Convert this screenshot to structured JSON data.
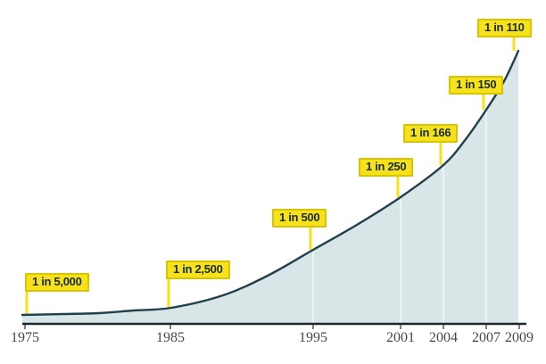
{
  "chart_data": {
    "type": "area",
    "title": "",
    "xlabel": "",
    "ylabel": "",
    "x_tick_labels": [
      "1975",
      "1985",
      "1995",
      "2001",
      "2004",
      "2007",
      "2009"
    ],
    "x_range": [
      1975,
      2009
    ],
    "grid": "faint vertical gridlines inside shaded area at 1995, 2001, 2004, 2007",
    "legend": "none",
    "points": [
      {
        "year": "1975",
        "label": "1 in 5,000",
        "prevalence_one_in": 5000
      },
      {
        "year": "1985",
        "label": "1 in 2,500",
        "prevalence_one_in": 2500
      },
      {
        "year": "1995",
        "label": "1 in 500",
        "prevalence_one_in": 500
      },
      {
        "year": "2001",
        "label": "1 in 250",
        "prevalence_one_in": 250
      },
      {
        "year": "2004",
        "label": "1 in 166",
        "prevalence_one_in": 166
      },
      {
        "year": "2007",
        "label": "1 in 150",
        "prevalence_one_in": 150
      },
      {
        "year": "2009",
        "label": "1 in 110",
        "prevalence_one_in": 110
      }
    ],
    "colors": {
      "callout_fill": "#f5e21b",
      "callout_border": "#d9c404",
      "callout_text": "#1b2a31",
      "curve": "#20404c",
      "area_fill": "#d9e6e8",
      "gridline": "#eef4f4",
      "axis": "#1c262c",
      "tick": "#555555",
      "year_text": "#474747",
      "background": "#ffffff"
    }
  }
}
